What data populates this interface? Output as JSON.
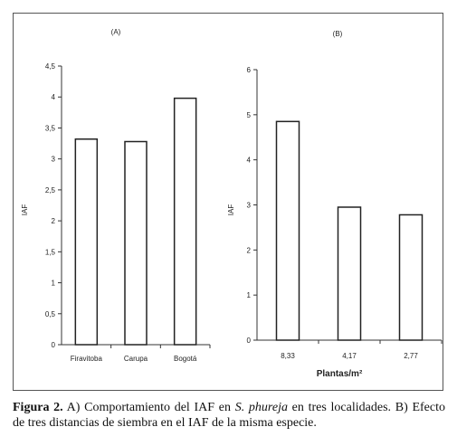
{
  "chart_data": [
    {
      "type": "bar",
      "title": "(A)",
      "xlabel": "",
      "ylabel": "IAF",
      "ylim": [
        0,
        4.5
      ],
      "yticks": [
        "0",
        "0,5",
        "1",
        "1,5",
        "2",
        "2,5",
        "3",
        "3,5",
        "4",
        "4,5"
      ],
      "categories": [
        "Firavitoba",
        "Carupa",
        "Bogotá"
      ],
      "values": [
        3.32,
        3.28,
        3.98
      ]
    },
    {
      "type": "bar",
      "title": "(B)",
      "xlabel": "Plantas/m²",
      "ylabel": "IAF",
      "ylim": [
        0,
        6
      ],
      "yticks": [
        "0",
        "1",
        "2",
        "3",
        "4",
        "5",
        "6"
      ],
      "categories": [
        "8,33",
        "4,17",
        "2,77"
      ],
      "values": [
        4.85,
        2.95,
        2.78
      ]
    }
  ],
  "caption": {
    "label": "Figura 2.",
    "text_a": " A) Comportamiento del IAF en ",
    "species": "S. phureja",
    "text_b": " en tres localidades. B) Efecto de tres distancias de siembra en el IAF de la misma especie."
  },
  "colors": {
    "bar_fill": "#ffffff",
    "bar_stroke": "#222222",
    "axis": "#333333"
  }
}
